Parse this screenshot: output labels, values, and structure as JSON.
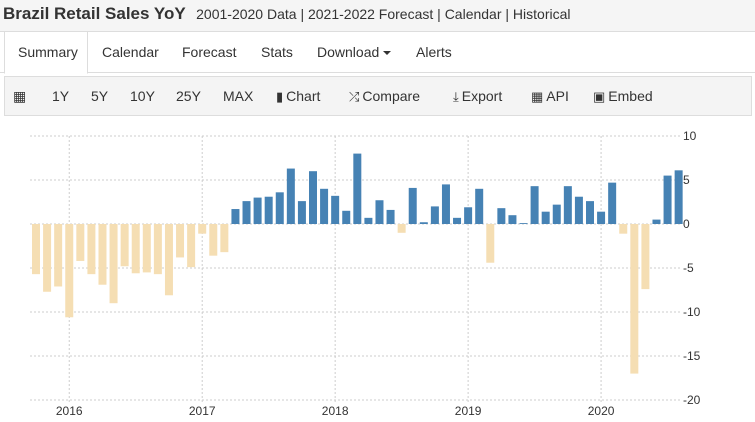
{
  "header": {
    "title": "Brazil Retail Sales YoY",
    "subtitle": "2001-2020 Data | 2021-2022 Forecast | Calendar | Historical"
  },
  "tabs": [
    {
      "label": "Summary",
      "active": true
    },
    {
      "label": "Calendar"
    },
    {
      "label": "Forecast"
    },
    {
      "label": "Stats"
    },
    {
      "label": "Download"
    },
    {
      "label": "Alerts"
    }
  ],
  "toolbar": {
    "calendar_icon": "calendar-icon",
    "ranges": [
      "1Y",
      "5Y",
      "10Y",
      "25Y",
      "MAX"
    ],
    "chart": "Chart",
    "compare": "Compare",
    "export": "Export",
    "api": "API",
    "embed": "Embed"
  },
  "chart_data": {
    "type": "bar",
    "colors": {
      "positive": "#4682b4",
      "negative": "#f5deb3"
    },
    "ylim": [
      -20,
      10
    ],
    "yticks": [
      10,
      5,
      0,
      -5,
      -10,
      -15,
      -20
    ],
    "xticks": [
      "2016",
      "2017",
      "2018",
      "2019",
      "2020"
    ],
    "grid": true,
    "y_axis_position": "right",
    "x": [
      "2015-10",
      "2015-11",
      "2015-12",
      "2016-01",
      "2016-02",
      "2016-03",
      "2016-04",
      "2016-05",
      "2016-06",
      "2016-07",
      "2016-08",
      "2016-09",
      "2016-10",
      "2016-11",
      "2016-12",
      "2017-01",
      "2017-02",
      "2017-03",
      "2017-04",
      "2017-05",
      "2017-06",
      "2017-07",
      "2017-08",
      "2017-09",
      "2017-10",
      "2017-11",
      "2017-12",
      "2018-01",
      "2018-02",
      "2018-03",
      "2018-04",
      "2018-05",
      "2018-06",
      "2018-07",
      "2018-08",
      "2018-09",
      "2018-10",
      "2018-11",
      "2018-12",
      "2019-01",
      "2019-02",
      "2019-03",
      "2019-04",
      "2019-05",
      "2019-06",
      "2019-07",
      "2019-08",
      "2019-09",
      "2019-10",
      "2019-11",
      "2019-12",
      "2020-01",
      "2020-02",
      "2020-03",
      "2020-04",
      "2020-05",
      "2020-06",
      "2020-07",
      "2020-08"
    ],
    "values": [
      -5.7,
      -7.7,
      -7.1,
      -10.6,
      -4.2,
      -5.7,
      -6.9,
      -9.0,
      -4.8,
      -5.6,
      -5.5,
      -5.7,
      -8.1,
      -3.8,
      -4.9,
      -1.1,
      -3.6,
      -3.2,
      1.7,
      2.6,
      3.0,
      3.1,
      3.6,
      6.3,
      2.6,
      6.0,
      4.0,
      3.2,
      1.5,
      8.0,
      0.7,
      2.7,
      1.6,
      -1.0,
      4.1,
      0.2,
      2.0,
      4.5,
      0.7,
      1.9,
      4.0,
      -4.4,
      1.8,
      1.0,
      0.1,
      4.3,
      1.4,
      2.2,
      4.3,
      3.1,
      2.6,
      1.4,
      4.7,
      -1.1,
      -17.0,
      -7.4,
      0.5,
      5.5,
      6.1
    ]
  }
}
